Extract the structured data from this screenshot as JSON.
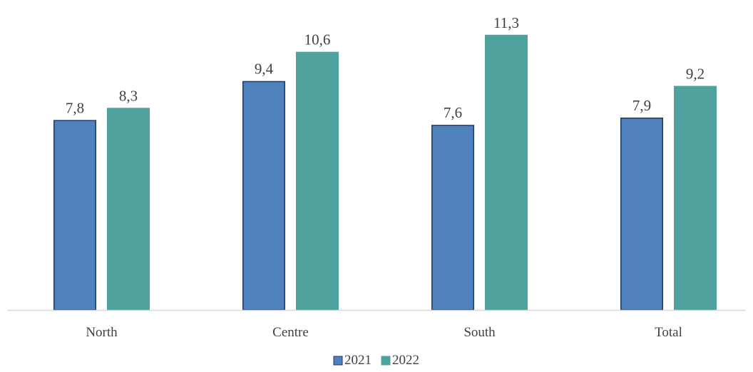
{
  "chart_data": {
    "type": "bar",
    "categories": [
      "North",
      "Centre",
      "South",
      "Total"
    ],
    "series": [
      {
        "name": "2021",
        "values": [
          7.8,
          9.4,
          7.6,
          7.9
        ],
        "labels": [
          "7,8",
          "9,4",
          "7,6",
          "7,9"
        ],
        "color": "#4f81bd",
        "border": "#1f3864"
      },
      {
        "name": "2022",
        "values": [
          8.3,
          10.6,
          11.3,
          9.2
        ],
        "labels": [
          "8,3",
          "10,6",
          "11,3",
          "9,2"
        ],
        "color": "#4ea19c",
        "border": "#4ea19c"
      }
    ],
    "title": "",
    "xlabel": "",
    "ylabel": "",
    "ylim": [
      0,
      12
    ],
    "grid": false,
    "legend": "bottom",
    "axis_color": "#d9d9d9"
  }
}
